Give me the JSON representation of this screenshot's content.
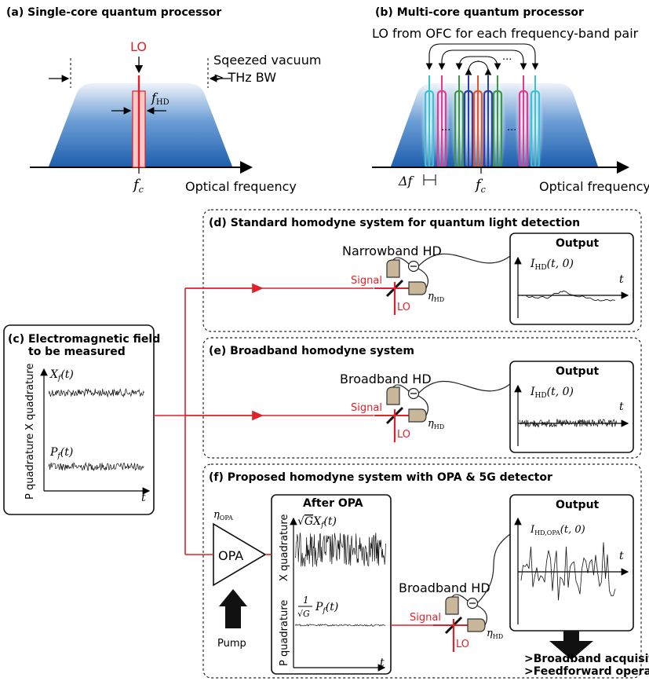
{
  "panel_a": {
    "title": "(a) Single-core quantum processor",
    "lo_label": "LO",
    "squeezed_label": "Sqeezed vacuum",
    "bw_label": "> THz BW",
    "fhd_label": "f",
    "fhd_sub": "HD",
    "fc_label": "f",
    "fc_sub": "c",
    "axis_label": "Optical frequency"
  },
  "panel_b": {
    "title": "(b) Multi-core quantum processor",
    "lo_label": "LO from OFC for each frequency-band pair",
    "df_label": "Δf",
    "fc_label": "f",
    "fc_sub": "c",
    "axis_label": "Optical frequency",
    "ellipsis": "···"
  },
  "panel_c": {
    "title_line1": "(c) Electromagnetic field",
    "title_line2": "to be measured",
    "x_axis": "X quadrature",
    "p_axis": "P quadrature",
    "x_trace_label": "X_f(t)",
    "p_trace_label": "P_f(t)",
    "t_label": "t"
  },
  "panel_d": {
    "title": "(d) Standard homodyne system for quantum light detection",
    "hd_label": "Narrowband HD",
    "signal_label": "Signal",
    "lo_label": "LO",
    "eta_label": "η",
    "eta_sub": "HD",
    "output_title": "Output",
    "output_trace": "I_HD(t,0)",
    "t_label": "t"
  },
  "panel_e": {
    "title": "(e) Broadband homodyne system",
    "hd_label": "Broadband HD",
    "signal_label": "Signal",
    "lo_label": "LO",
    "eta_label": "η",
    "eta_sub": "HD",
    "output_title": "Output",
    "output_trace": "I_HD(t,0)",
    "t_label": "t"
  },
  "panel_f": {
    "title": "(f) Proposed homodyne system with OPA & 5G detector",
    "opa_label": "OPA",
    "eta_opa": "η",
    "eta_opa_sub": "OPA",
    "pump_label": "Pump",
    "after_opa_title": "After OPA",
    "x_axis": "X quadrature",
    "p_axis": "P quadrature",
    "x_trace_label": "√G X_f(t)",
    "p_trace_label": "P_f(t)",
    "p_frac": "1/√G",
    "hd_label": "Broadband HD",
    "signal_label": "Signal",
    "lo_label": "LO",
    "eta_label": "η",
    "eta_sub": "HD",
    "output_title": "Output",
    "output_trace": "I_HD,OPA(t,0)",
    "t_label": "t",
    "bullet1": ">Broadband acquisition",
    "bullet2": ">Feedforward operation"
  },
  "colors": {
    "red": "#e0212b",
    "blue_dark": "#1f5fae",
    "blue_light": "#dce8f6",
    "detector": "#c9b79a",
    "comb": [
      "#36c3d6",
      "#e8388f",
      "#3a9a44",
      "#2b3fa6",
      "#e8542a"
    ]
  }
}
